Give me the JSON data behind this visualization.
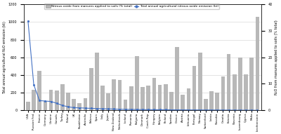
{
  "countries": [
    "USA",
    "Russian Fed.",
    "France",
    "Germany",
    "Ukraine",
    "Canada",
    "Turkey",
    "Poland",
    "UK",
    "Kazakhstan",
    "Australia",
    "Belarus",
    "Spain",
    "Italy",
    "Japan",
    "New Zealand",
    "Netherlands",
    "Iceland",
    "Romania",
    "Bulgaria",
    "Denmark",
    "Czech Rep.",
    "Hungary",
    "Belgium",
    "Finland",
    "Sweden",
    "Greece",
    "Austria",
    "Lithuania",
    "Portugal",
    "Norway",
    "Switzerland",
    "Latvia",
    "Slovakia",
    "Croatia",
    "Estonia",
    "Slovenia",
    "Luxembourg",
    "Cyprus",
    "Malta",
    "Liechtenstein"
  ],
  "bar_values": [
    100,
    230,
    450,
    105,
    235,
    225,
    295,
    200,
    130,
    80,
    140,
    475,
    650,
    280,
    195,
    355,
    345,
    120,
    270,
    610,
    265,
    280,
    370,
    285,
    295,
    210,
    720,
    175,
    245,
    500,
    650,
    130,
    220,
    200,
    380,
    635,
    410,
    600,
    410,
    600,
    1060
  ],
  "line_values": [
    1010,
    290,
    110,
    105,
    100,
    80,
    55,
    40,
    30,
    28,
    25,
    22,
    20,
    18,
    16,
    14,
    12,
    11,
    10,
    9,
    8,
    7.5,
    7,
    6.5,
    6,
    5.5,
    5,
    4.8,
    4.5,
    4.2,
    4,
    3.8,
    3.5,
    3,
    2.8,
    2.5,
    2,
    1.8,
    1.5,
    1,
    0.2
  ],
  "bar_color": "#b8b8b8",
  "line_color": "#4472c4",
  "ylim_left": [
    0,
    1200
  ],
  "ylim_right": [
    0,
    40
  ],
  "yticks_left": [
    0,
    200,
    400,
    600,
    800,
    1000,
    1200
  ],
  "yticks_right": [
    0,
    10,
    20,
    30,
    40
  ],
  "ylabel_left": "Total annual agricultural N₂O emission (kt)",
  "ylabel_right": "N₂O from manures applied to soils (% total)",
  "legend_bar": "Nitrous oxide from manures applied to soils (% total)",
  "legend_line": "Total annual agricultural nitrous oxide emission (kt)",
  "background_color": "#ffffff",
  "grid_color": "#d0d0d0"
}
